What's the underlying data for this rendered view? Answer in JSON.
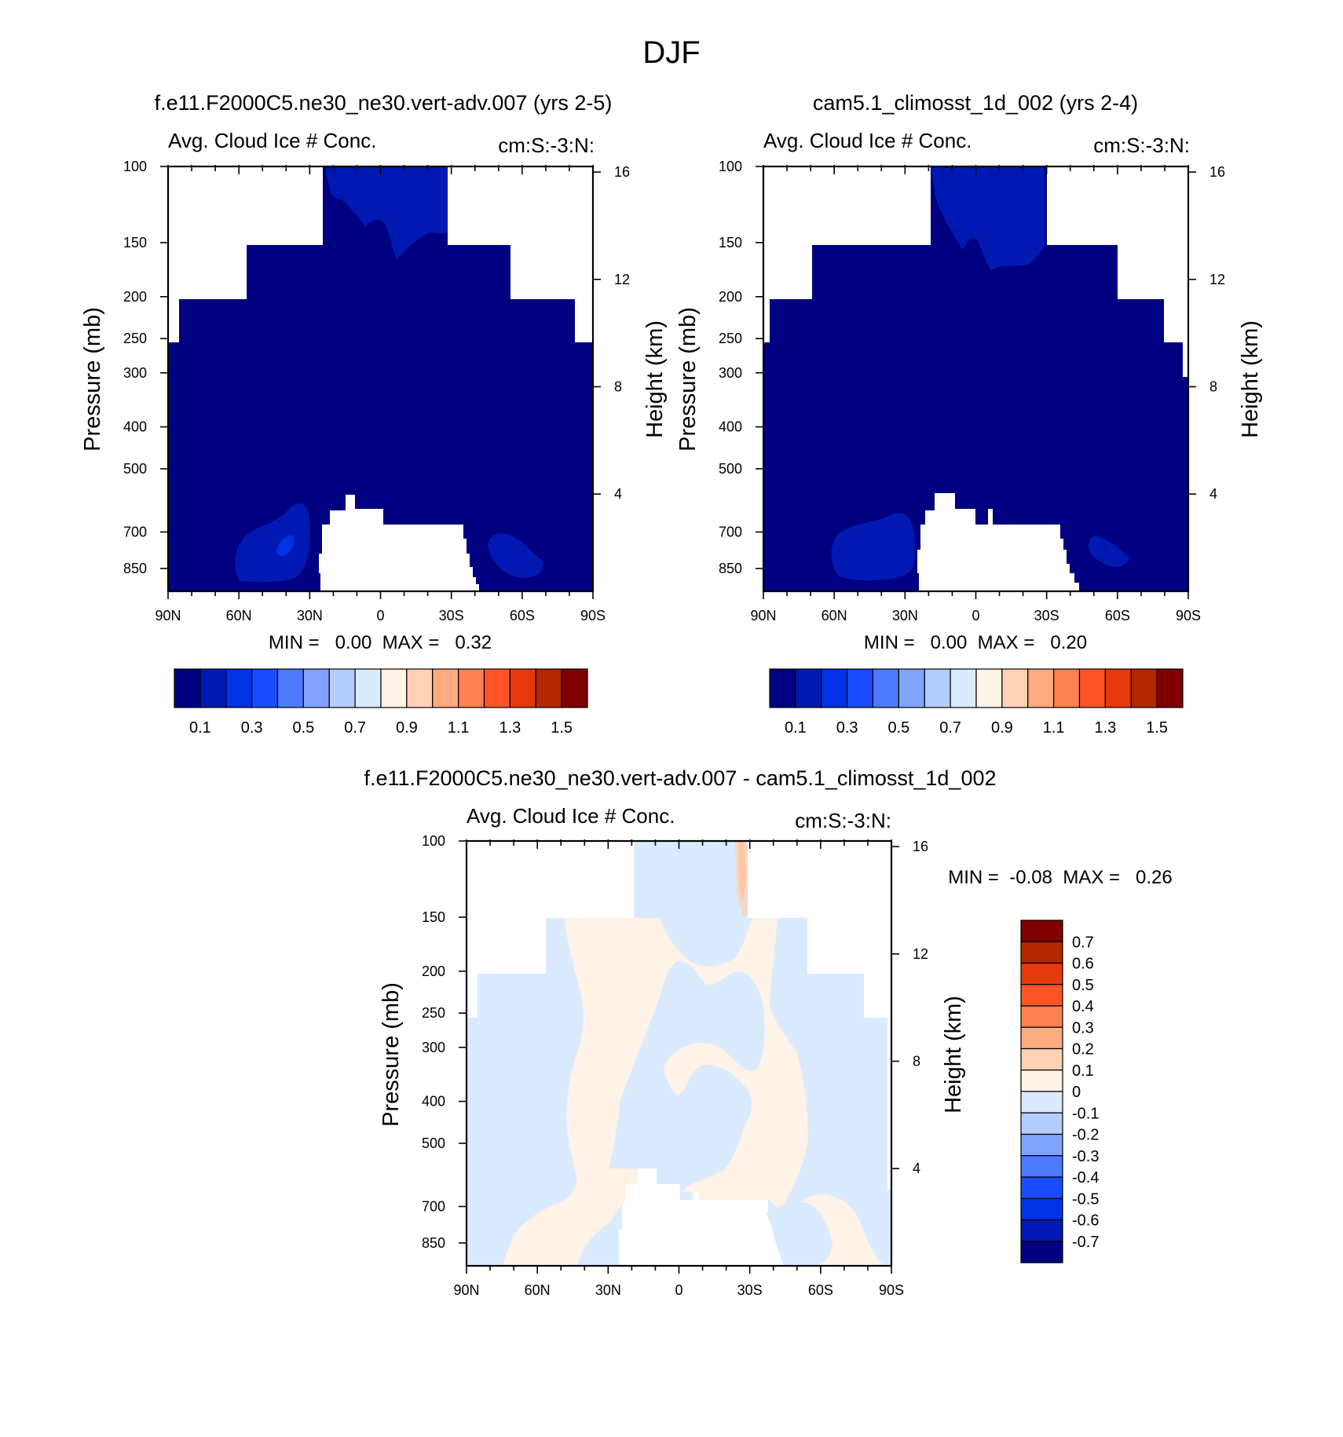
{
  "figure_title": "DJF",
  "colors": {
    "abs_levels": [
      "#000080",
      "#0019b3",
      "#0033e6",
      "#1a4cff",
      "#4d7aff",
      "#80a3ff",
      "#b3cdff",
      "#dbebff",
      "#fff2e6",
      "#ffd1b3",
      "#ffaa80",
      "#ff8050",
      "#ff5526",
      "#e63a0d",
      "#b32600",
      "#800000"
    ],
    "diff_levels": [
      "#000080",
      "#0019b3",
      "#0033e6",
      "#1a4cff",
      "#4d7aff",
      "#80a3ff",
      "#b3cdff",
      "#dbebff",
      "#fff2e6",
      "#ffd1b3",
      "#ffaa80",
      "#ff8050",
      "#ff5526",
      "#e63a0d",
      "#b32600",
      "#800000"
    ]
  },
  "chart_data": [
    {
      "id": "panel_a",
      "type": "heatmap",
      "title": "f.e11.F2000C5.ne30_ne30.vert-adv.007 (yrs 2-5)",
      "left_string": "Avg. Cloud Ice # Conc.",
      "right_string": "cm:S:-3:N:",
      "ylabel": "Pressure (mb)",
      "ylabel_right": "Height (km)",
      "x_ticks": [
        "90N",
        "60N",
        "30N",
        "0",
        "30S",
        "60S",
        "90S"
      ],
      "y_ticks": [
        "100",
        "150",
        "200",
        "250",
        "300",
        "400",
        "500",
        "700",
        "850"
      ],
      "height_ticks": [
        "16",
        "12",
        "8",
        "4"
      ],
      "stats": "MIN =   0.00  MAX =   0.32",
      "min": 0.0,
      "max": 0.32,
      "legend": {
        "orientation": "horizontal",
        "labels": [
          "0.1",
          "0.3",
          "0.5",
          "0.7",
          "0.9",
          "1.1",
          "1.3",
          "1.5"
        ]
      }
    },
    {
      "id": "panel_b",
      "type": "heatmap",
      "title": "cam5.1_climosst_1d_002 (yrs 2-4)",
      "left_string": "Avg. Cloud Ice # Conc.",
      "right_string": "cm:S:-3:N:",
      "ylabel": "Pressure (mb)",
      "ylabel_right": "Height (km)",
      "x_ticks": [
        "90N",
        "60N",
        "30N",
        "0",
        "30S",
        "60S",
        "90S"
      ],
      "y_ticks": [
        "100",
        "150",
        "200",
        "250",
        "300",
        "400",
        "500",
        "700",
        "850"
      ],
      "height_ticks": [
        "16",
        "12",
        "8",
        "4"
      ],
      "stats": "MIN =   0.00  MAX =   0.20",
      "min": 0.0,
      "max": 0.2,
      "legend": {
        "orientation": "horizontal",
        "labels": [
          "0.1",
          "0.3",
          "0.5",
          "0.7",
          "0.9",
          "1.1",
          "1.3",
          "1.5"
        ]
      }
    },
    {
      "id": "panel_diff",
      "type": "heatmap",
      "title": "f.e11.F2000C5.ne30_ne30.vert-adv.007 - cam5.1_climosst_1d_002",
      "left_string": "Avg. Cloud Ice # Conc.",
      "right_string": "cm:S:-3:N:",
      "ylabel": "Pressure (mb)",
      "ylabel_right": "Height (km)",
      "x_ticks": [
        "90N",
        "60N",
        "30N",
        "0",
        "30S",
        "60S",
        "90S"
      ],
      "y_ticks": [
        "100",
        "150",
        "200",
        "250",
        "300",
        "400",
        "500",
        "700",
        "850"
      ],
      "height_ticks": [
        "16",
        "12",
        "8",
        "4"
      ],
      "stats": "MIN =  -0.08  MAX =   0.26",
      "min": -0.08,
      "max": 0.26,
      "legend": {
        "orientation": "vertical",
        "labels": [
          "0.7",
          "0.6",
          "0.5",
          "0.4",
          "0.3",
          "0.2",
          "0.1",
          "0",
          "-0.1",
          "-0.2",
          "-0.3",
          "-0.4",
          "-0.5",
          "-0.6",
          "-0.7"
        ]
      }
    }
  ]
}
